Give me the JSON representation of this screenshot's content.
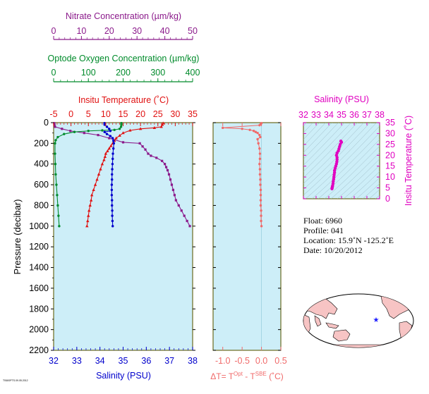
{
  "colors": {
    "nitrate": "#8b1a8b",
    "oxygen": "#008b2b",
    "temperature": "#e01010",
    "salinity": "#0000cc",
    "delta": "#f06a6a",
    "salinity_ts": "#e000c0",
    "plot_bg": "#cdeef8",
    "frame": "#6b6b1e",
    "land": "#f7c4c4"
  },
  "chart_data": [
    {
      "type": "scatter",
      "ylabel": "Pressure (decibar)",
      "ylim": [
        2200,
        0
      ],
      "yticks": [
        0,
        200,
        400,
        600,
        800,
        1000,
        1200,
        1400,
        1600,
        1800,
        2000,
        2200
      ],
      "axes": {
        "nitrate": {
          "title": "Nitrate Concentration (µm/kg)",
          "lim": [
            0,
            50
          ],
          "ticks": [
            0,
            10,
            20,
            30,
            40,
            50
          ]
        },
        "oxygen": {
          "title": "Optode Oxygen Concentration (µm/kg)",
          "lim": [
            0,
            400
          ],
          "ticks": [
            0,
            100,
            200,
            300,
            400
          ]
        },
        "temperature": {
          "title": "Insitu Temperature (˚C)",
          "lim": [
            -5,
            35
          ],
          "ticks": [
            -5,
            0,
            5,
            10,
            15,
            20,
            25,
            30,
            35
          ]
        },
        "salinity": {
          "title": "Salinity (PSU)",
          "lim": [
            32,
            38
          ],
          "ticks": [
            32,
            33,
            34,
            35,
            36,
            37,
            38
          ]
        }
      },
      "series": [
        {
          "key": "nitrate",
          "marker": "square",
          "points": [
            [
              0.2,
              5
            ],
            [
              0.3,
              20
            ],
            [
              0.5,
              40
            ],
            [
              3,
              60
            ],
            [
              6,
              80
            ],
            [
              11,
              100
            ],
            [
              16,
              120
            ],
            [
              20,
              150
            ],
            [
              25,
              190
            ],
            [
              31,
              200
            ],
            [
              32,
              230
            ],
            [
              33,
              260
            ],
            [
              34,
              300
            ],
            [
              35,
              320
            ],
            [
              37,
              340
            ],
            [
              39,
              370
            ],
            [
              40,
              400
            ],
            [
              40.5,
              430
            ],
            [
              41,
              460
            ],
            [
              41.5,
              500
            ],
            [
              42,
              550
            ],
            [
              42.5,
              600
            ],
            [
              43,
              650
            ],
            [
              43.5,
              700
            ],
            [
              44,
              750
            ],
            [
              45,
              800
            ],
            [
              46,
              850
            ],
            [
              47,
              900
            ],
            [
              48,
              950
            ],
            [
              49,
              1000
            ]
          ]
        },
        {
          "key": "oxygen",
          "marker": "circle",
          "points": [
            [
              195,
              5
            ],
            [
              195,
              20
            ],
            [
              194,
              40
            ],
            [
              190,
              60
            ],
            [
              175,
              70
            ],
            [
              140,
              75
            ],
            [
              100,
              80
            ],
            [
              60,
              90
            ],
            [
              30,
              110
            ],
            [
              12,
              140
            ],
            [
              6,
              170
            ],
            [
              4,
              200
            ],
            [
              4,
              300
            ],
            [
              5,
              400
            ],
            [
              6,
              500
            ],
            [
              8,
              600
            ],
            [
              10,
              700
            ],
            [
              12,
              800
            ],
            [
              14,
              900
            ],
            [
              16,
              1000
            ]
          ]
        },
        {
          "key": "temperature",
          "marker": "triangle",
          "points": [
            [
              26.5,
              5
            ],
            [
              26.3,
              20
            ],
            [
              26,
              40
            ],
            [
              24,
              50
            ],
            [
              20,
              60
            ],
            [
              17,
              75
            ],
            [
              15,
              100
            ],
            [
              14,
              125
            ],
            [
              13,
              150
            ],
            [
              12.5,
              175
            ],
            [
              12,
              200
            ],
            [
              11.5,
              225
            ],
            [
              11,
              250
            ],
            [
              10.5,
              275
            ],
            [
              10,
              300
            ],
            [
              9.8,
              330
            ],
            [
              9.5,
              360
            ],
            [
              9,
              400
            ],
            [
              8.5,
              450
            ],
            [
              8,
              500
            ],
            [
              7.5,
              550
            ],
            [
              7,
              600
            ],
            [
              6.5,
              650
            ],
            [
              6,
              700
            ],
            [
              5.8,
              750
            ],
            [
              5.5,
              800
            ],
            [
              5.2,
              850
            ],
            [
              5,
              900
            ],
            [
              4.8,
              950
            ],
            [
              4.6,
              1000
            ]
          ]
        },
        {
          "key": "salinity",
          "marker": "circle",
          "points": [
            [
              34.2,
              5
            ],
            [
              34.2,
              20
            ],
            [
              34.3,
              40
            ],
            [
              34.4,
              60
            ],
            [
              34.45,
              80
            ],
            [
              34.2,
              90
            ],
            [
              34.3,
              110
            ],
            [
              34.45,
              130
            ],
            [
              34.55,
              150
            ],
            [
              34.58,
              175
            ],
            [
              34.6,
              200
            ],
            [
              34.58,
              250
            ],
            [
              34.56,
              300
            ],
            [
              34.55,
              350
            ],
            [
              34.54,
              400
            ],
            [
              34.53,
              450
            ],
            [
              34.52,
              500
            ],
            [
              34.52,
              550
            ],
            [
              34.51,
              600
            ],
            [
              34.51,
              650
            ],
            [
              34.51,
              700
            ],
            [
              34.52,
              750
            ],
            [
              34.52,
              800
            ],
            [
              34.53,
              850
            ],
            [
              34.53,
              900
            ],
            [
              34.54,
              950
            ],
            [
              34.55,
              1000
            ]
          ]
        }
      ]
    },
    {
      "type": "scatter",
      "xlabel": "ΔT= T",
      "xlabel_sup1": "Opt",
      "xlabel_mid": " - T",
      "xlabel_sup2": "SBE",
      "xlabel_end": " (˚C)",
      "xlim": [
        -1.25,
        0.5
      ],
      "xticks": [
        -1.0,
        -0.5,
        0.0,
        0.5
      ],
      "xtick_labels": [
        "-1.0",
        "-0.5",
        "0.0",
        "0.5"
      ],
      "ylim": [
        2200,
        0
      ],
      "series": [
        {
          "key": "delta",
          "points": [
            [
              0.0,
              5
            ],
            [
              -0.02,
              15
            ],
            [
              -0.05,
              25
            ],
            [
              -1.0,
              50
            ],
            [
              -0.5,
              60
            ],
            [
              -0.3,
              70
            ],
            [
              -0.2,
              80
            ],
            [
              -0.15,
              90
            ],
            [
              -0.1,
              100
            ],
            [
              -0.05,
              120
            ],
            [
              -0.03,
              140
            ],
            [
              -0.1,
              160
            ],
            [
              -0.08,
              200
            ],
            [
              -0.05,
              250
            ],
            [
              -0.04,
              300
            ],
            [
              -0.04,
              350
            ],
            [
              -0.05,
              400
            ],
            [
              -0.04,
              450
            ],
            [
              -0.04,
              500
            ],
            [
              -0.03,
              550
            ],
            [
              -0.03,
              600
            ],
            [
              -0.02,
              650
            ],
            [
              -0.02,
              700
            ],
            [
              -0.02,
              750
            ],
            [
              -0.02,
              800
            ],
            [
              -0.01,
              850
            ],
            [
              -0.01,
              900
            ],
            [
              -0.01,
              950
            ],
            [
              0.0,
              1000
            ]
          ]
        }
      ]
    },
    {
      "type": "scatter",
      "xlabel": "Salinity (PSU)",
      "ylabel": "Insitu Temperature (˚C)",
      "xlim": [
        32,
        38
      ],
      "ylim": [
        0,
        35
      ],
      "xticks": [
        32,
        33,
        34,
        35,
        36,
        37,
        38
      ],
      "yticks": [
        0,
        5,
        10,
        15,
        20,
        25,
        30,
        35
      ],
      "series": [
        {
          "key": "salinity_ts",
          "points": [
            [
              34.25,
              4.6
            ],
            [
              34.26,
              5
            ],
            [
              34.28,
              5.5
            ],
            [
              34.3,
              6
            ],
            [
              34.33,
              7
            ],
            [
              34.35,
              8
            ],
            [
              34.38,
              9
            ],
            [
              34.4,
              10
            ],
            [
              34.42,
              11
            ],
            [
              34.45,
              12
            ],
            [
              34.45,
              13
            ],
            [
              34.5,
              14
            ],
            [
              34.55,
              15
            ],
            [
              34.6,
              16
            ],
            [
              34.63,
              17
            ],
            [
              34.65,
              18
            ],
            [
              34.65,
              19
            ],
            [
              34.6,
              20
            ],
            [
              34.65,
              21
            ],
            [
              34.75,
              22
            ],
            [
              34.8,
              23
            ],
            [
              34.85,
              24
            ],
            [
              34.9,
              25
            ],
            [
              35.0,
              26
            ],
            [
              34.95,
              26.5
            ]
          ]
        }
      ]
    }
  ],
  "info": {
    "float": "Float:  6960",
    "profile": "Profile:  041",
    "location": "Location:  15.9˚N  -125.2˚E",
    "date": "Date:  10/20/2012"
  },
  "map": {
    "marker": [
      -125.2,
      15.9
    ]
  },
  "footnote": "TS600PTS.09.05.2012"
}
